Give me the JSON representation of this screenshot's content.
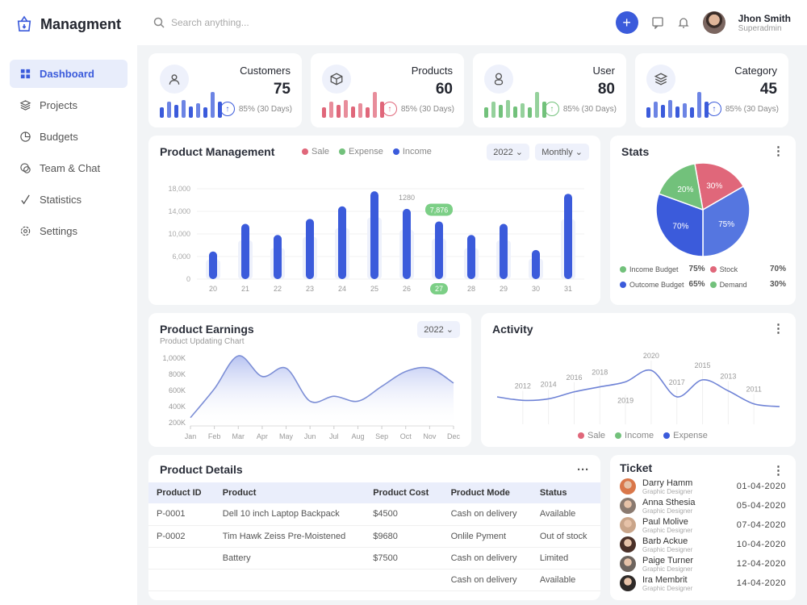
{
  "app": {
    "title": "Managment"
  },
  "sidebar": {
    "items": [
      {
        "label": "Dashboard",
        "icon": "grid-icon",
        "active": true
      },
      {
        "label": "Projects",
        "icon": "layers-icon"
      },
      {
        "label": "Budgets",
        "icon": "pie-icon"
      },
      {
        "label": "Team & Chat",
        "icon": "chat-icon"
      },
      {
        "label": "Statistics",
        "icon": "stats-icon"
      },
      {
        "label": "Settings",
        "icon": "gear-icon"
      }
    ]
  },
  "header": {
    "search_placeholder": "Search anything...",
    "user_name": "Jhon Smith",
    "user_role": "Superadmin"
  },
  "colors": {
    "accent": "#3b5bdb",
    "sale": "#e0677a",
    "expense": "#72c17b",
    "income": "#3b5bdb"
  },
  "stats": [
    {
      "title": "Customers",
      "value": "75",
      "trend": "85% (30 Days)",
      "color": "#3b5bdb",
      "icon": "users-icon",
      "spark": [
        35,
        55,
        45,
        60,
        40,
        50,
        35,
        90,
        55
      ]
    },
    {
      "title": "Products",
      "value": "60",
      "trend": "85% (30 Days)",
      "color": "#e0677a",
      "icon": "box-icon",
      "spark": [
        35,
        55,
        45,
        60,
        40,
        50,
        35,
        90,
        55
      ]
    },
    {
      "title": "User",
      "value": "80",
      "trend": "85% (30 Days)",
      "color": "#72c17b",
      "icon": "user-icon",
      "spark": [
        35,
        55,
        45,
        60,
        40,
        50,
        35,
        90,
        55
      ]
    },
    {
      "title": "Category",
      "value": "45",
      "trend": "85% (30 Days)",
      "color": "#3b5bdb",
      "icon": "layers-icon",
      "spark": [
        35,
        55,
        45,
        60,
        40,
        50,
        35,
        90,
        55
      ]
    }
  ],
  "product_management": {
    "title": "Product Management",
    "year": "2022",
    "period": "Monthly",
    "legend": [
      "Sale",
      "Expense",
      "Income"
    ],
    "chart_data": {
      "type": "bar",
      "categories": [
        "20",
        "21",
        "22",
        "23",
        "24",
        "25",
        "26",
        "27",
        "28",
        "29",
        "30",
        "31"
      ],
      "values": [
        5500,
        11000,
        8800,
        12000,
        14500,
        17500,
        14000,
        11500,
        8800,
        11000,
        5800,
        17000
      ],
      "yticks": [
        "0",
        "6,000",
        "10,000",
        "14,000",
        "18,000"
      ],
      "ylim": [
        0,
        18000
      ],
      "annotations": [
        {
          "category": "26",
          "label": "1280"
        },
        {
          "category": "27",
          "label": "7,876"
        }
      ],
      "highlight": "27"
    }
  },
  "stats_card": {
    "title": "Stats",
    "slices": [
      {
        "label": "30%",
        "color": "#e0677a"
      },
      {
        "label": "75%",
        "color": "#5576e0"
      },
      {
        "label": "70%",
        "color": "#3b5bdb"
      },
      {
        "label": "20%",
        "color": "#72c17b"
      }
    ],
    "legend": [
      {
        "label": "Income Budget",
        "value": "75%",
        "color": "#72c17b"
      },
      {
        "label": "Stock",
        "value": "70%",
        "color": "#e0677a"
      },
      {
        "label": "Outcome Budget",
        "value": "65%",
        "color": "#3b5bdb"
      },
      {
        "label": "Demand",
        "value": "30%",
        "color": "#72c17b"
      }
    ]
  },
  "earnings": {
    "title": "Product Earnings",
    "subtitle": "Product Updating Chart",
    "year": "2022",
    "chart_data": {
      "type": "area",
      "categories": [
        "Jan",
        "Feb",
        "Mar",
        "Apr",
        "May",
        "Jun",
        "Jul",
        "Aug",
        "Sep",
        "Oct",
        "Nov",
        "Dec"
      ],
      "values": [
        300,
        650,
        1050,
        800,
        900,
        500,
        560,
        500,
        680,
        860,
        900,
        720
      ],
      "yticks": [
        "200K",
        "400K",
        "600K",
        "800K",
        "1,000K"
      ],
      "ylim": [
        200,
        1100
      ]
    }
  },
  "activity": {
    "title": "Activity",
    "legend": [
      "Sale",
      "Income",
      "Expense"
    ],
    "chart_data": {
      "type": "line",
      "labels": [
        "2012",
        "2014",
        "2016",
        "2018",
        "2019",
        "2020",
        "2017",
        "2015",
        "2013",
        "2011"
      ],
      "values": [
        35,
        38,
        52,
        62,
        72,
        95,
        42,
        76,
        54,
        28
      ]
    }
  },
  "product_details": {
    "title": "Product Details",
    "columns": [
      "Product ID",
      "Product",
      "Product Cost",
      "Product Mode",
      "Status"
    ],
    "rows": [
      [
        "P-0001",
        "Dell 10 inch Laptop Backpack",
        "$4500",
        "Cash on delivery",
        "Available"
      ],
      [
        "P-0002",
        "Tim Hawk Zeiss Pre-Moistened",
        "$9680",
        "Onlile Pyment",
        "Out of stock"
      ],
      [
        "",
        "Battery",
        "$7500",
        "Cash on delivery",
        "Limited"
      ],
      [
        "",
        "",
        "",
        "Cash on delivery",
        "Available"
      ]
    ]
  },
  "ticket": {
    "title": "Ticket",
    "items": [
      {
        "name": "Darry Hamm",
        "role": "Graphic Designer",
        "date": "01-04-2020",
        "color": "#d9774a"
      },
      {
        "name": "Anna Sthesia",
        "role": "Graphic Designer",
        "date": "05-04-2020",
        "color": "#8a7a70"
      },
      {
        "name": "Paul Molive",
        "role": "Graphic Designer",
        "date": "07-04-2020",
        "color": "#c9a58a"
      },
      {
        "name": "Barb Ackue",
        "role": "Graphic Designer",
        "date": "10-04-2020",
        "color": "#4a3028"
      },
      {
        "name": "Paige Turner",
        "role": "Graphic Designer",
        "date": "12-04-2020",
        "color": "#6d645e"
      },
      {
        "name": "Ira Membrit",
        "role": "Graphic Designer",
        "date": "14-04-2020",
        "color": "#2e2a28"
      }
    ]
  }
}
